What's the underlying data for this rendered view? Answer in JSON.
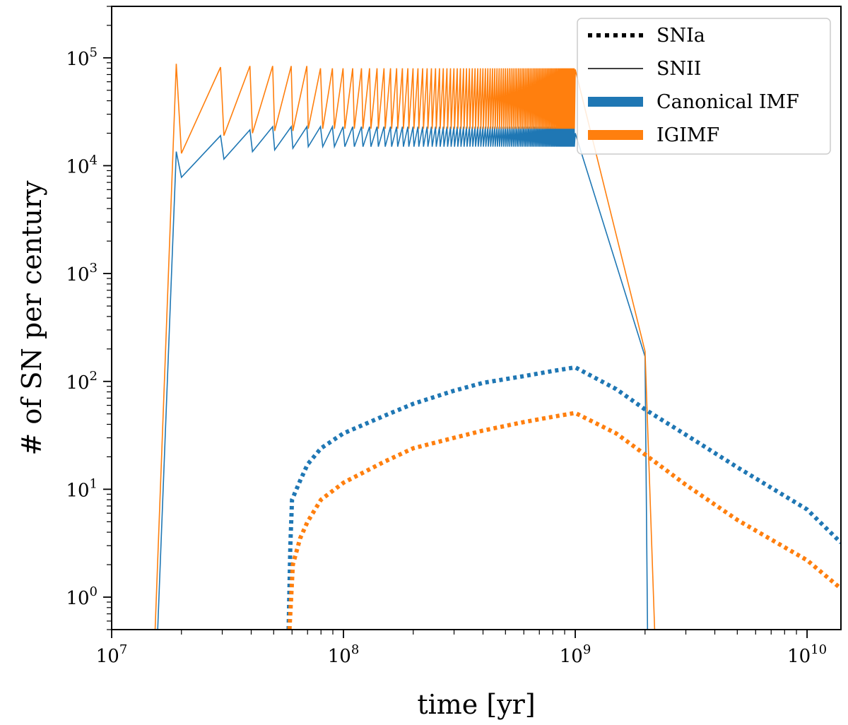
{
  "chart_data": {
    "type": "line",
    "xlabel": "time [yr]",
    "ylabel": "# of SN per century",
    "xscale": "log",
    "yscale": "log",
    "xlim": [
      10000000,
      14000000000
    ],
    "ylim": [
      0.5,
      300000
    ],
    "xticks": [
      {
        "base": "10",
        "exp": "7",
        "value": 10000000
      },
      {
        "base": "10",
        "exp": "8",
        "value": 100000000
      },
      {
        "base": "10",
        "exp": "9",
        "value": 1000000000
      },
      {
        "base": "10",
        "exp": "10",
        "value": 10000000000
      }
    ],
    "yticks": [
      {
        "base": "10",
        "exp": "0",
        "value": 1
      },
      {
        "base": "10",
        "exp": "1",
        "value": 10
      },
      {
        "base": "10",
        "exp": "2",
        "value": 100
      },
      {
        "base": "10",
        "exp": "3",
        "value": 1000
      },
      {
        "base": "10",
        "exp": "4",
        "value": 10000
      },
      {
        "base": "10",
        "exp": "5",
        "value": 100000
      }
    ],
    "grid": false,
    "legend": {
      "position": "top-right",
      "entries": [
        {
          "label": "SNIa",
          "style": "dotted",
          "color": "#000000"
        },
        {
          "label": "SNII",
          "style": "solid-thin",
          "color": "#000000"
        },
        {
          "label": "Canonical IMF",
          "style": "solid-thick",
          "color": "#1f77b4"
        },
        {
          "label": "IGIMF",
          "style": "solid-thick",
          "color": "#ff7f0e"
        }
      ]
    },
    "series": [
      {
        "type": "SNII",
        "imf": "Canonical IMF",
        "color": "#1f77b4",
        "style": "solid",
        "x": [
          15800000,
          19000000,
          20000000,
          29500000,
          30500000,
          39500000,
          40500000,
          49500000,
          50500000,
          59500000,
          60500000,
          69500000,
          70500000,
          1000000000,
          2000000000,
          2050000000
        ],
        "y": [
          0.5,
          13500,
          7800,
          19000,
          11500,
          21500,
          13500,
          23000,
          14000,
          23000,
          14500,
          23000,
          15000,
          20000,
          170,
          0.5
        ],
        "sawtooth": {
          "x_start": 70500000,
          "x_end": 1000000000,
          "period": 10000000,
          "high": 23000,
          "low": 15000
        }
      },
      {
        "type": "SNII",
        "imf": "IGIMF",
        "color": "#ff7f0e",
        "style": "solid",
        "x": [
          15400000,
          19000000,
          20000000,
          29500000,
          30500000,
          39500000,
          40500000,
          49500000,
          50500000,
          59500000,
          60500000,
          69500000,
          70500000,
          1000000000,
          2000000000,
          2200000000
        ],
        "y": [
          0.5,
          88000,
          13000,
          82000,
          19000,
          84000,
          20000,
          84000,
          21000,
          84000,
          21000,
          84000,
          22000,
          78000,
          190,
          0.5
        ],
        "sawtooth": {
          "x_start": 70500000,
          "x_end": 1000000000,
          "period": 10000000,
          "high": 80000,
          "low": 22000
        }
      },
      {
        "type": "SNIa",
        "imf": "Canonical IMF",
        "color": "#1f77b4",
        "style": "dotted",
        "x": [
          58000000,
          59000000,
          60000000,
          65000000,
          70000000,
          80000000,
          100000000,
          150000000,
          200000000,
          300000000,
          400000000,
          600000000,
          800000000,
          1000000000,
          1500000000,
          2000000000,
          3000000000,
          5000000000,
          10000000000,
          14000000000
        ],
        "y": [
          0.5,
          3,
          8,
          12,
          17,
          24,
          33,
          48,
          62,
          82,
          97,
          112,
          125,
          135,
          85,
          55,
          32,
          16,
          6.5,
          3.2
        ]
      },
      {
        "type": "SNIa",
        "imf": "IGIMF",
        "color": "#ff7f0e",
        "style": "dotted",
        "x": [
          58500000,
          59500000,
          60500000,
          65000000,
          70000000,
          80000000,
          100000000,
          150000000,
          200000000,
          300000000,
          400000000,
          600000000,
          800000000,
          1000000000,
          1500000000,
          2000000000,
          3000000000,
          5000000000,
          10000000000,
          14000000000
        ],
        "y": [
          0.5,
          1,
          2,
          3.5,
          5,
          8,
          11.5,
          18,
          24,
          30,
          35,
          42,
          47,
          51,
          33,
          21,
          11,
          5.2,
          2.2,
          1.2
        ]
      }
    ]
  }
}
